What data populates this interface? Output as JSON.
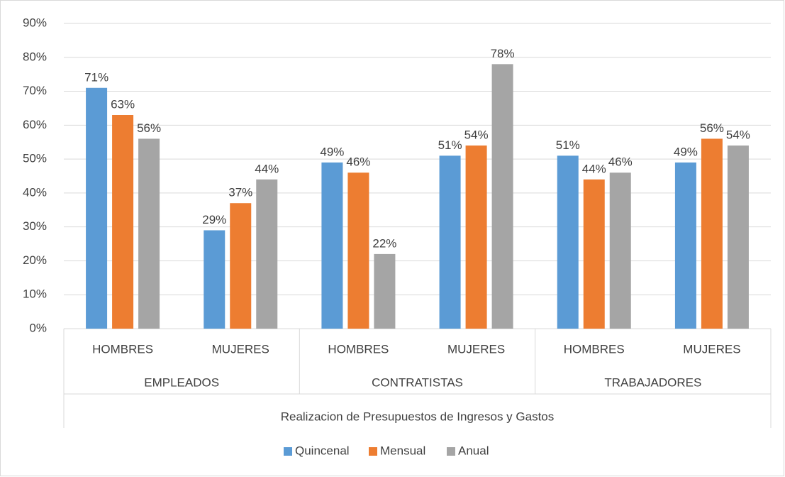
{
  "chart_data": {
    "type": "bar",
    "categories": [
      "HOMBRES",
      "MUJERES",
      "HOMBRES",
      "MUJERES",
      "HOMBRES",
      "MUJERES"
    ],
    "category_groups": [
      "EMPLEADOS",
      "CONTRATISTAS",
      "TRABAJADORES"
    ],
    "xlabel": "Realizacion de Presupuestos de Ingresos y Gastos",
    "series": [
      {
        "name": "Quincenal",
        "color": "#5b9bd5",
        "values": [
          71,
          29,
          49,
          51,
          51,
          49
        ],
        "value_labels": [
          "71%",
          "29%",
          "49%",
          "51%",
          "51%",
          "49%"
        ]
      },
      {
        "name": "Mensual",
        "color": "#ed7d31",
        "values": [
          63,
          37,
          46,
          54,
          44,
          56
        ],
        "value_labels": [
          "63%",
          "37%",
          "46%",
          "54%",
          "44%",
          "56%"
        ]
      },
      {
        "name": "Anual",
        "color": "#a5a5a5",
        "values": [
          56,
          44,
          22,
          78,
          46,
          54
        ],
        "value_labels": [
          "56%",
          "44%",
          "22%",
          "78%",
          "46%",
          "54%"
        ]
      }
    ],
    "ylim": [
      0,
      90
    ],
    "yticks": [
      {
        "value": 0,
        "label": "0%"
      },
      {
        "value": 10,
        "label": "10%"
      },
      {
        "value": 20,
        "label": "20%"
      },
      {
        "value": 30,
        "label": "30%"
      },
      {
        "value": 40,
        "label": "40%"
      },
      {
        "value": 50,
        "label": "50%"
      },
      {
        "value": 60,
        "label": "60%"
      },
      {
        "value": 70,
        "label": "70%"
      },
      {
        "value": 80,
        "label": "80%"
      },
      {
        "value": 90,
        "label": "90%"
      }
    ],
    "grid": true,
    "legend": "bottom"
  }
}
